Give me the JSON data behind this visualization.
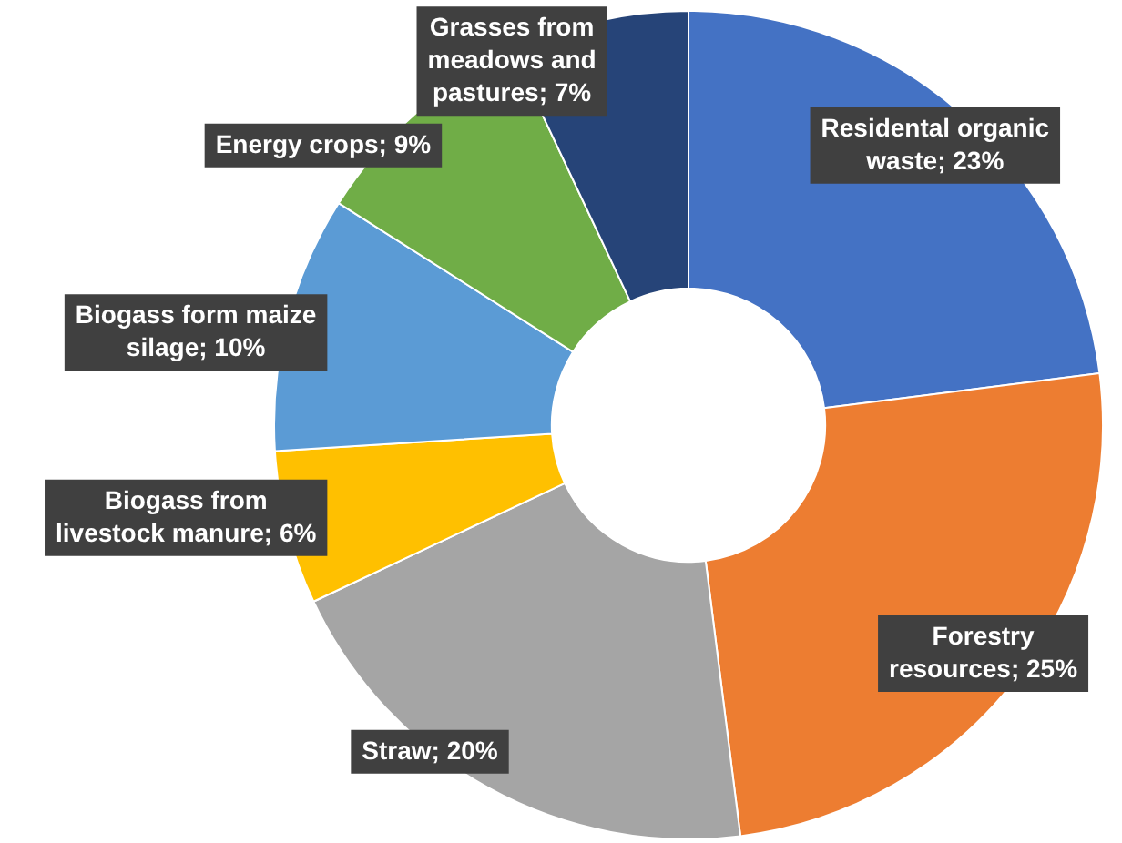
{
  "chart_data": {
    "type": "donut",
    "categories": [
      "Residental organic waste",
      "Forestry resources",
      "Straw",
      "Biogass from livestock manure",
      "Biogass form maize silage",
      "Energy crops",
      "Grasses from meadows and pastures"
    ],
    "values": [
      23,
      25,
      20,
      6,
      10,
      9,
      7
    ],
    "colors": [
      "#4472c4",
      "#ed7d31",
      "#a5a5a5",
      "#ffc000",
      "#5b9bd5",
      "#70ad47",
      "#264478"
    ],
    "value_labels": [
      "23%",
      "25%",
      "20%",
      "6%",
      "10%",
      "9%",
      "7%"
    ]
  }
}
